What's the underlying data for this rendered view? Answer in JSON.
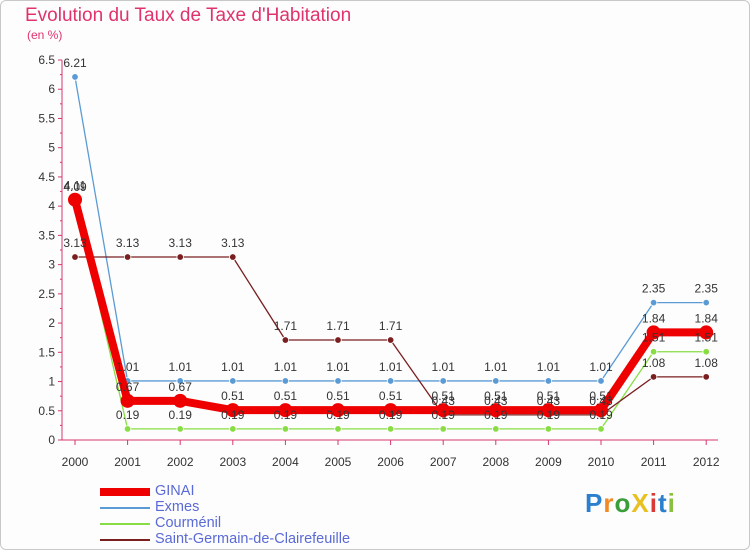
{
  "chart_data": {
    "type": "line",
    "title": "Evolution du Taux de Taxe d'Habitation",
    "subtitle": "(en %)",
    "x": [
      "2000",
      "2001",
      "2002",
      "2003",
      "2004",
      "2005",
      "2006",
      "2007",
      "2008",
      "2009",
      "2010",
      "2011",
      "2012"
    ],
    "ylim": [
      0,
      6.5
    ],
    "yticks": [
      "0",
      "0.5",
      "1",
      "1.5",
      "2",
      "2.5",
      "3",
      "3.5",
      "4",
      "4.5",
      "5",
      "5.5",
      "6",
      "6.5"
    ],
    "grid": false,
    "legend_position": "bottom-left",
    "series": [
      {
        "name": "GINAI",
        "color": "#ee0000",
        "values": [
          4.11,
          0.67,
          0.67,
          0.51,
          0.51,
          0.51,
          0.51,
          0.51,
          0.51,
          0.51,
          0.51,
          1.84,
          1.84
        ],
        "labels": [
          "4.11",
          "0.67",
          "0.67",
          "0.51",
          "0.51",
          "0.51",
          "0.51",
          "0.51",
          "0.51",
          "0.51",
          "0.51",
          "1.84",
          "1.84"
        ]
      },
      {
        "name": "Exmes",
        "color": "#5b9bd5",
        "values": [
          6.21,
          1.01,
          1.01,
          1.01,
          1.01,
          1.01,
          1.01,
          1.01,
          1.01,
          1.01,
          1.01,
          2.35,
          2.35
        ],
        "labels": [
          "6.21",
          "1.01",
          "1.01",
          "1.01",
          "1.01",
          "1.01",
          "1.01",
          "1.01",
          "1.01",
          "1.01",
          "1.01",
          "2.35",
          "2.35"
        ]
      },
      {
        "name": "Courménil",
        "color": "#88dd44",
        "values": [
          4.09,
          0.19,
          0.19,
          0.19,
          0.19,
          0.19,
          0.19,
          0.19,
          0.19,
          0.19,
          0.19,
          1.51,
          1.51
        ],
        "labels": [
          "4.09",
          "0.19",
          "0.19",
          "0.19",
          "0.19",
          "0.19",
          "0.19",
          "0.19",
          "0.19",
          "0.19",
          "0.19",
          "1.51",
          "1.51"
        ]
      },
      {
        "name": "Saint-Germain-de-Clairefeuille",
        "color": "#7a1f1f",
        "values": [
          3.13,
          3.13,
          3.13,
          3.13,
          1.71,
          1.71,
          1.71,
          0.43,
          0.43,
          0.43,
          0.43,
          1.08,
          1.08
        ],
        "labels": [
          "3.13",
          "3.13",
          "3.13",
          "3.13",
          "1.71",
          "1.71",
          "1.71",
          "0.43",
          "0.43",
          "0.43",
          "0.43",
          "1.08",
          "1.08"
        ]
      }
    ]
  },
  "logo": {
    "text": "ProXiti",
    "colors": [
      "#2a7fcf",
      "#f08a24",
      "#3a9e3a",
      "#e8c020",
      "#d83a3a",
      "#2a7fcf",
      "#8ac040"
    ]
  },
  "legend_colors": {
    "label": "#5a6ad6"
  },
  "axis_color": "#d8366e"
}
